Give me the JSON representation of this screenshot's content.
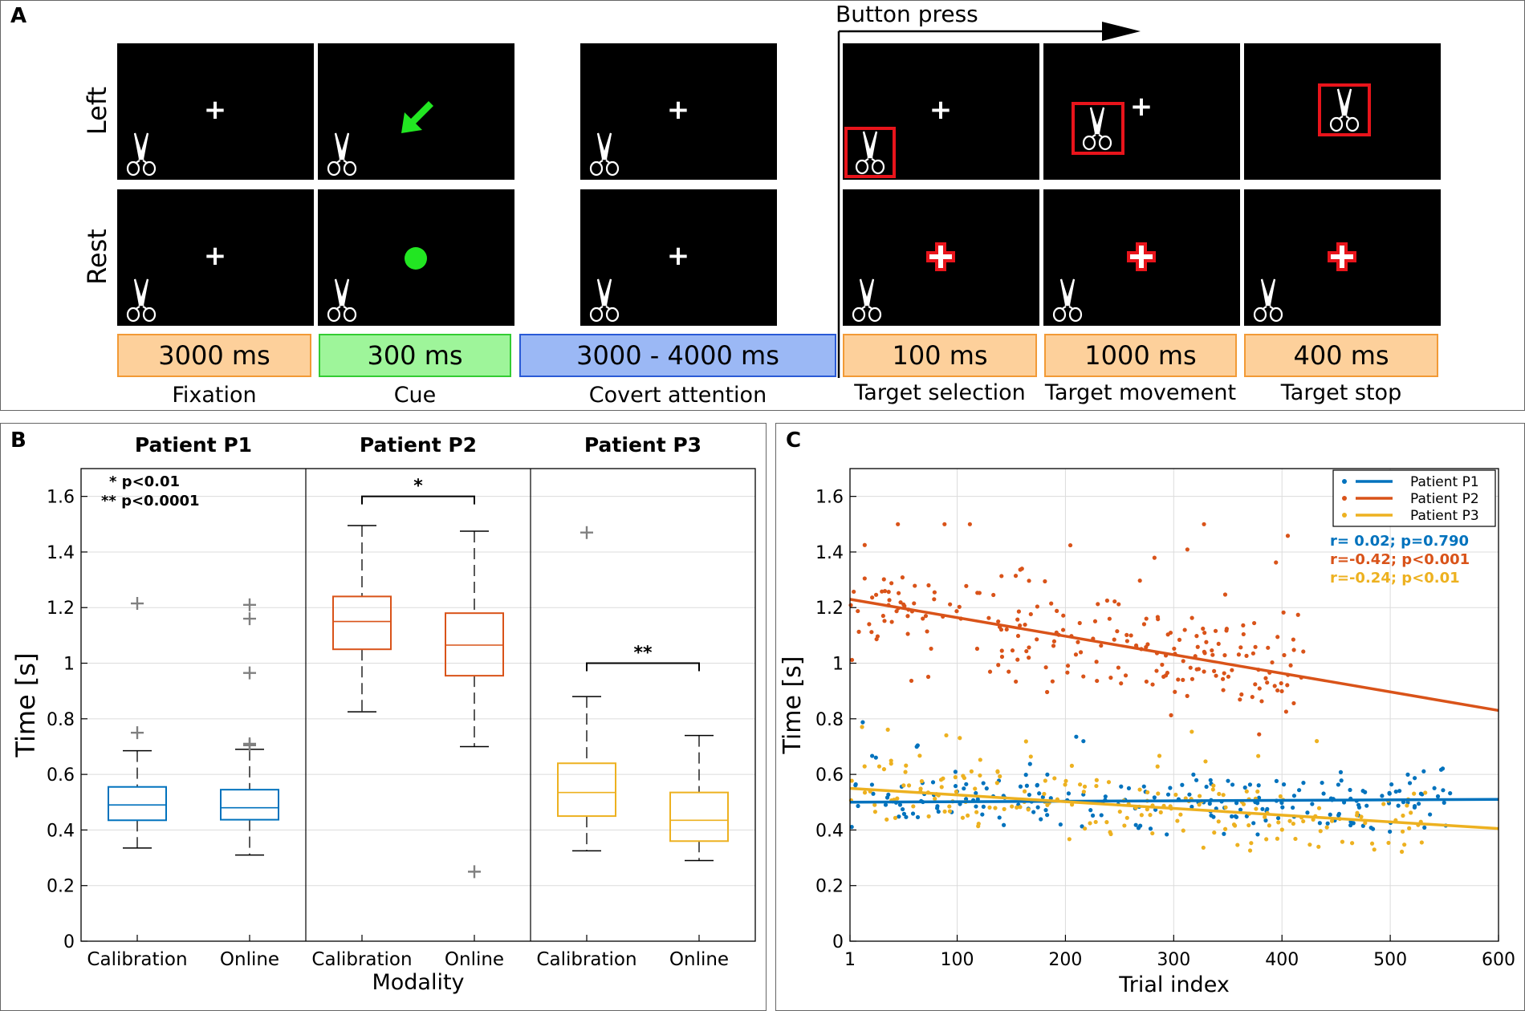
{
  "panels": {
    "a": "A",
    "b": "B",
    "c": "C"
  },
  "panel_a": {
    "rows": [
      "Left",
      "Rest"
    ],
    "button_press": "Button press",
    "durations": [
      "3000 ms",
      "300 ms",
      "3000 - 4000 ms",
      "100 ms",
      "1000 ms",
      "400 ms"
    ],
    "phases": [
      "Fixation",
      "Cue",
      "Covert attention",
      "Target selection",
      "Target movement",
      "Target stop"
    ],
    "colors": {
      "orange": "#fdd09b",
      "green": "#9ef59a",
      "blue": "#9bb8f5",
      "cue": "#22e622",
      "select": "#e8141b"
    }
  },
  "chart_data": [
    {
      "type": "box",
      "ylabel": "Time [s]",
      "xlabel": "Modality",
      "ylim": [
        0,
        1.7
      ],
      "yticks": [
        "0",
        "0.2",
        "0.4",
        "0.6",
        "0.8",
        "1",
        "1.2",
        "1.4",
        "1.6"
      ],
      "legend_note": [
        "* p<0.01",
        "** p<0.0001"
      ],
      "significance": [
        "*",
        "**"
      ],
      "groups": [
        {
          "title": "Patient P1",
          "color": "#0072bd",
          "boxes": [
            {
              "label": "Calibration",
              "min": 0.335,
              "q1": 0.435,
              "median": 0.49,
              "q3": 0.555,
              "max": 0.685,
              "outliers": [
                0.75,
                1.215
              ]
            },
            {
              "label": "Online",
              "min": 0.31,
              "q1": 0.437,
              "median": 0.48,
              "q3": 0.545,
              "max": 0.69,
              "outliers": [
                0.705,
                0.71,
                0.965,
                1.16,
                1.21
              ]
            }
          ]
        },
        {
          "title": "Patient P2",
          "color": "#d95319",
          "boxes": [
            {
              "label": "Calibration",
              "min": 0.825,
              "q1": 1.05,
              "median": 1.15,
              "q3": 1.24,
              "max": 1.495,
              "outliers": []
            },
            {
              "label": "Online",
              "min": 0.7,
              "q1": 0.955,
              "median": 1.065,
              "q3": 1.18,
              "max": 1.475,
              "outliers": [
                0.25
              ]
            }
          ]
        },
        {
          "title": "Patient P3",
          "color": "#edb120",
          "boxes": [
            {
              "label": "Calibration",
              "min": 0.325,
              "q1": 0.45,
              "median": 0.535,
              "q3": 0.64,
              "max": 0.88,
              "outliers": [
                1.47
              ]
            },
            {
              "label": "Online",
              "min": 0.29,
              "q1": 0.36,
              "median": 0.435,
              "q3": 0.535,
              "max": 0.74,
              "outliers": []
            }
          ]
        }
      ]
    },
    {
      "type": "scatter",
      "xlabel": "Trial index",
      "ylabel": "Time [s]",
      "xlim": [
        1,
        600
      ],
      "ylim": [
        0,
        1.7
      ],
      "xticks": [
        "1",
        "100",
        "200",
        "300",
        "400",
        "500",
        "600"
      ],
      "yticks": [
        "0",
        "0.2",
        "0.4",
        "0.6",
        "0.8",
        "1",
        "1.2",
        "1.4",
        "1.6"
      ],
      "series": [
        {
          "name": "Patient P1",
          "color": "#0072bd",
          "fit": [
            [
              1,
              0.5
            ],
            [
              600,
              0.51
            ]
          ],
          "stat": "r= 0.02; p=0.790",
          "n": 220,
          "x_range": [
            1,
            565
          ],
          "center": 0.49,
          "spread": 0.09
        },
        {
          "name": "Patient P2",
          "color": "#d95319",
          "fit": [
            [
              1,
              1.23
            ],
            [
              600,
              0.83
            ]
          ],
          "stat": "r=-0.42; p<0.001",
          "n": 230,
          "x_range": [
            1,
            420
          ],
          "center": 1.05,
          "spread": 0.17
        },
        {
          "name": "Patient P3",
          "color": "#edb120",
          "fit": [
            [
              1,
              0.55
            ],
            [
              600,
              0.405
            ]
          ],
          "stat": "r=-0.24; p<0.01",
          "n": 200,
          "x_range": [
            1,
            540
          ],
          "center": 0.46,
          "spread": 0.1
        }
      ]
    }
  ]
}
